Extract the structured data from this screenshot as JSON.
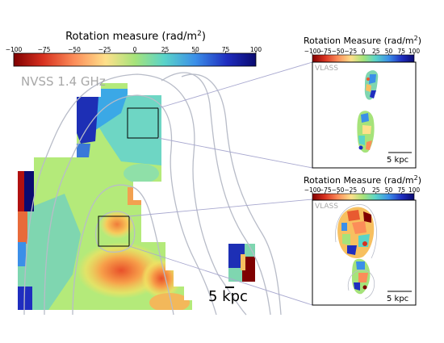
{
  "main_map": {
    "colorbar_title": "Rotation measure (rad/m",
    "colorbar_sup": "2",
    "colorbar_close": ")",
    "ticks": [
      "−100",
      "−75",
      "−50",
      "−25",
      "0",
      "25",
      "50",
      "75",
      "100"
    ],
    "survey_label": "NVSS 1.4 GHz",
    "scale_label": "5 kpc"
  },
  "inset_top": {
    "colorbar_title": "Rotation Measure (rad/m",
    "colorbar_sup": "2",
    "colorbar_close": ")",
    "ticks": [
      "−100",
      "−75",
      "−50",
      "−25",
      "0",
      "25",
      "50",
      "75",
      "100"
    ],
    "survey_label": "VLASS",
    "scale_label": "5 kpc"
  },
  "inset_bottom": {
    "colorbar_title": "Rotation Measure (rad/m",
    "colorbar_sup": "2",
    "colorbar_close": ")",
    "ticks": [
      "−100",
      "−75",
      "−50",
      "−25",
      "0",
      "25",
      "50",
      "75",
      "100"
    ],
    "survey_label": "VLASS",
    "scale_label": "5 kpc"
  },
  "colors": {
    "colormap": [
      "#7f0000",
      "#d7301f",
      "#fc8d59",
      "#fee08b",
      "#a6e37a",
      "#5ad4c8",
      "#3b8fe8",
      "#1f2dbf",
      "#0a0a70"
    ],
    "contour": "#b8bcc8",
    "survey_label": "#a8a8a8",
    "connector": "#a9a9d0"
  }
}
